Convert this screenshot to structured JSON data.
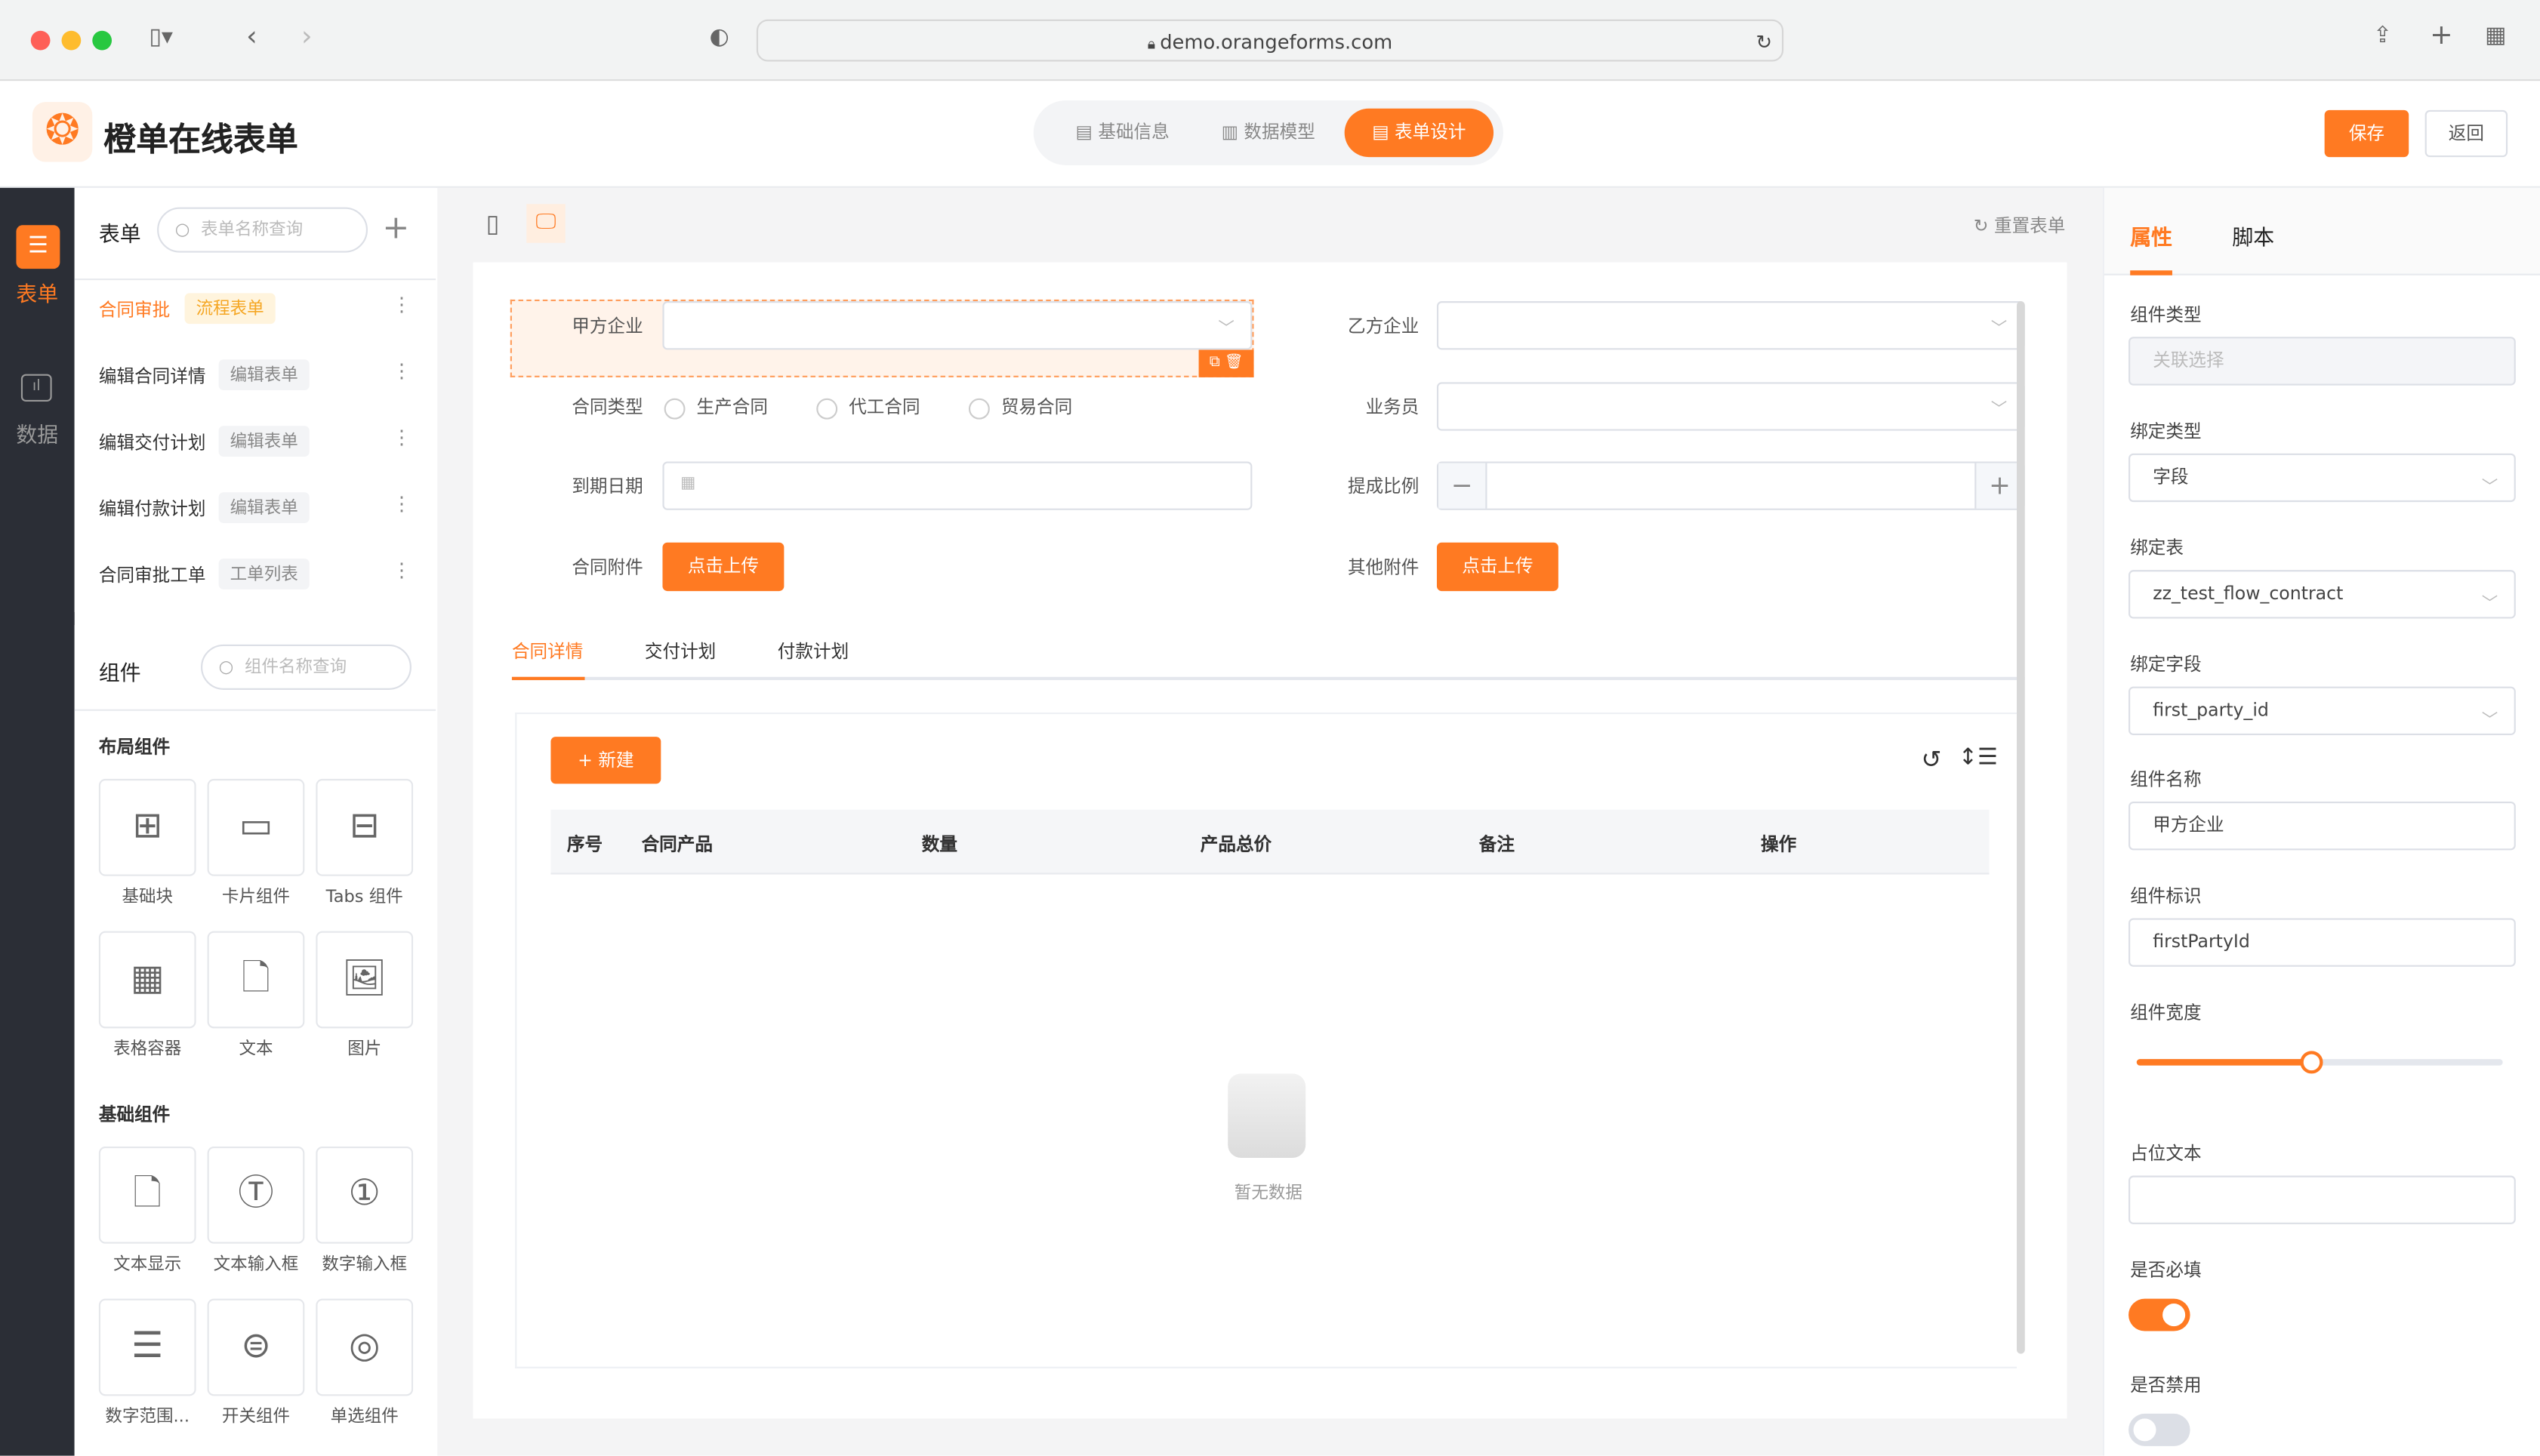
{
  "browser": {
    "url": "demo.orangeforms.com"
  },
  "app": {
    "title": "橙单在线表单",
    "top_tabs": [
      {
        "label": "基础信息",
        "icon": "doc-icon"
      },
      {
        "label": "数据模型",
        "icon": "chart-icon"
      },
      {
        "label": "表单设计",
        "icon": "form-icon",
        "active": true
      }
    ],
    "save_label": "保存",
    "back_label": "返回"
  },
  "rail": [
    {
      "label": "表单",
      "active": true
    },
    {
      "label": "数据"
    }
  ],
  "forms_panel": {
    "title": "表单",
    "search_placeholder": "表单名称查询",
    "items": [
      {
        "name": "合同审批",
        "tag": "流程表单",
        "active": true
      },
      {
        "name": "编辑合同详情",
        "tag": "编辑表单"
      },
      {
        "name": "编辑交付计划",
        "tag": "编辑表单"
      },
      {
        "name": "编辑付款计划",
        "tag": "编辑表单"
      },
      {
        "name": "合同审批工单",
        "tag": "工单列表"
      }
    ]
  },
  "components_panel": {
    "title": "组件",
    "search_placeholder": "组件名称查询",
    "groups": [
      {
        "title": "布局组件",
        "items": [
          {
            "label": "基础块",
            "icon": "grid-icon"
          },
          {
            "label": "卡片组件",
            "icon": "card-icon"
          },
          {
            "label": "Tabs 组件",
            "icon": "tabs-icon"
          },
          {
            "label": "表格容器",
            "icon": "table-icon"
          },
          {
            "label": "文本",
            "icon": "text-icon"
          },
          {
            "label": "图片",
            "icon": "image-icon"
          }
        ]
      },
      {
        "title": "基础组件",
        "items": [
          {
            "label": "文本显示",
            "icon": "text-display-icon"
          },
          {
            "label": "文本输入框",
            "icon": "text-input-icon"
          },
          {
            "label": "数字输入框",
            "icon": "number-input-icon"
          },
          {
            "label": "数字范围...",
            "icon": "number-range-icon"
          },
          {
            "label": "开关组件",
            "icon": "switch-icon"
          },
          {
            "label": "单选组件",
            "icon": "radio-icon"
          }
        ]
      }
    ]
  },
  "canvas": {
    "reset_label": "重置表单",
    "fields": {
      "party_a": "甲方企业",
      "party_b": "乙方企业",
      "contract_type": "合同类型",
      "contract_type_options": [
        "生产合同",
        "代工合同",
        "贸易合同"
      ],
      "salesman": "业务员",
      "due_date": "到期日期",
      "commission": "提成比例",
      "attachment": "合同附件",
      "other_attachment": "其他附件",
      "upload_label": "点击上传"
    },
    "tabs": [
      "合同详情",
      "交付计划",
      "付款计划"
    ],
    "new_label": "新建",
    "table_headers": [
      "序号",
      "合同产品",
      "数量",
      "产品总价",
      "备注",
      "操作"
    ],
    "empty_text": "暂无数据"
  },
  "props": {
    "tabs": [
      "属性",
      "脚本"
    ],
    "component_type_label": "组件类型",
    "component_type_value": "关联选择",
    "bind_type_label": "绑定类型",
    "bind_type_value": "字段",
    "bind_table_label": "绑定表",
    "bind_table_value": "zz_test_flow_contract",
    "bind_field_label": "绑定字段",
    "bind_field_value": "first_party_id",
    "name_label": "组件名称",
    "name_value": "甲方企业",
    "id_label": "组件标识",
    "id_value": "firstPartyId",
    "width_label": "组件宽度",
    "width_percent": 48,
    "placeholder_label": "占位文本",
    "placeholder_value": "",
    "required_label": "是否必填",
    "required": true,
    "disabled_label": "是否禁用",
    "disabled": false
  },
  "colors": {
    "accent": "#ff7a22",
    "rail": "#2b2e36"
  }
}
